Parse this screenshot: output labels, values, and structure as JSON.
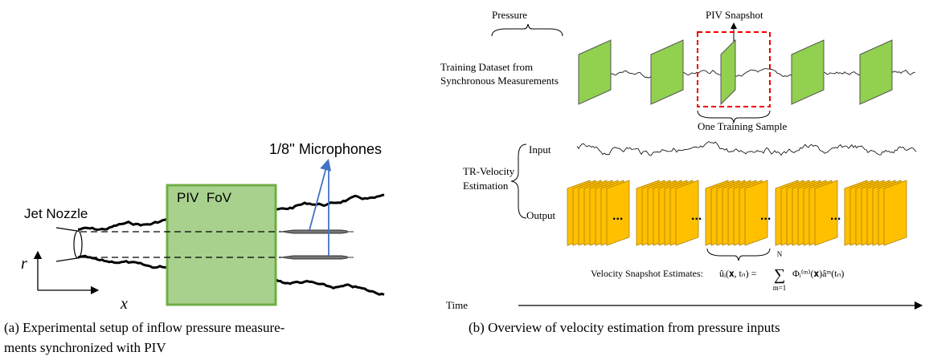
{
  "panel_a": {
    "microphones_label": "1/8'' Microphones",
    "nozzle_label": "Jet Nozzle",
    "fov_label": "PIV  FoV",
    "axis_r": "r",
    "axis_x": "x",
    "caption": [
      "(a) Experimental setup of inflow pressure measure-",
      "ments synchronized with PIV"
    ]
  },
  "panel_b": {
    "pressure_label": "Pressure",
    "snapshot_label": "PIV Snapshot",
    "training_label": [
      "Training Dataset from",
      "Synchronous Measurements"
    ],
    "sample_label": "One Training Sample",
    "input_label": "Input",
    "estimation_label": [
      "TR-Velocity",
      "Estimation"
    ],
    "output_label": "Output",
    "output_dots": [
      "...",
      "...",
      "...",
      "..."
    ],
    "estimates_label": "Velocity Snapshot Estimates:",
    "formula": {
      "lhs": "ûᵢ(𝐱, tₙ) =",
      "sum": "∑",
      "upper": "N",
      "lower": "m=1",
      "rhs": "Φᵢ⁽ᵐ⁾(𝐱)âᵐ(tₙ)"
    },
    "time_label": "Time",
    "caption": "(b) Overview of velocity estimation from pressure inputs"
  }
}
